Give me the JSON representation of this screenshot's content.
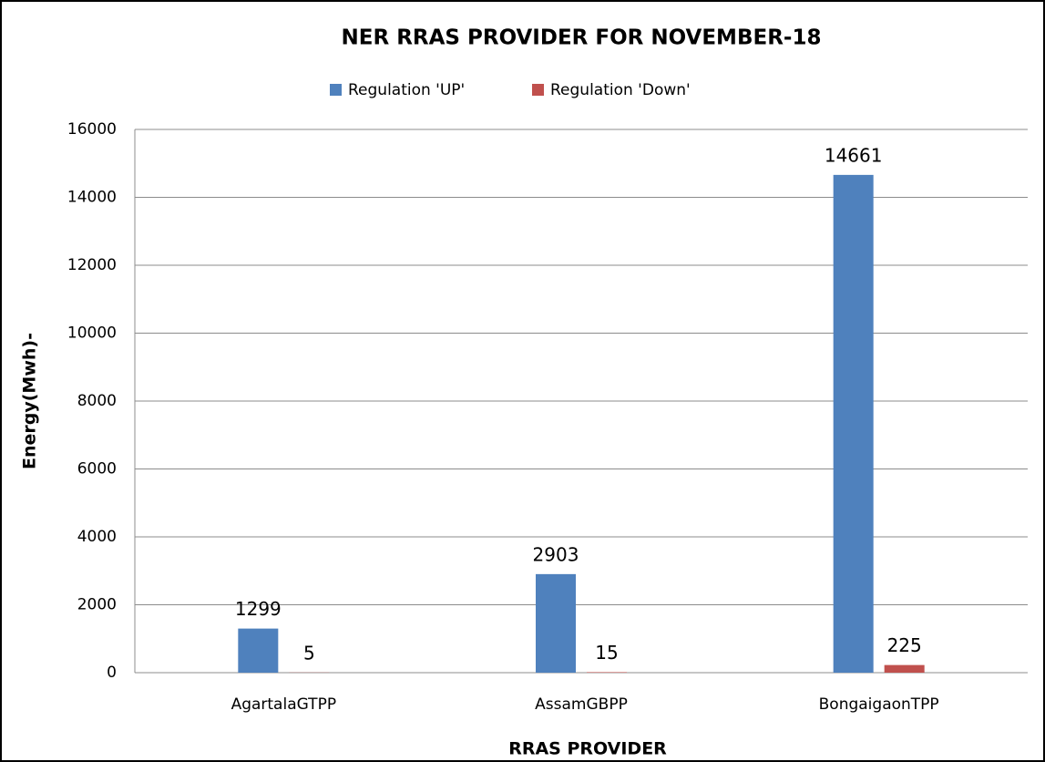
{
  "chart_data": {
    "type": "bar",
    "title": "NER RRAS PROVIDER FOR NOVEMBER-18",
    "x_label": "RRAS PROVIDER",
    "y_label": "Energy(Mwh)-",
    "categories": [
      "AgartalaGTPP",
      "AssamGBPP",
      "BongaigaonTPP"
    ],
    "series": [
      {
        "name": "Regulation 'UP'",
        "color": "#4f81bd",
        "values": [
          1299,
          2903,
          14661
        ]
      },
      {
        "name": "Regulation 'Down'",
        "color": "#c0504d",
        "values": [
          5,
          15,
          225
        ]
      }
    ],
    "ylim": [
      0,
      16000
    ],
    "yticks": [
      0,
      2000,
      4000,
      6000,
      8000,
      10000,
      12000,
      14000,
      16000
    ],
    "grid": true,
    "legend": "top"
  }
}
